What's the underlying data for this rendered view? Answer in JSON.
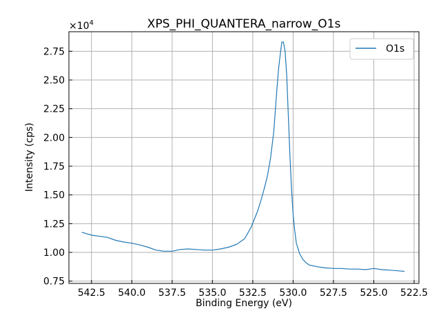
{
  "chart_data": {
    "type": "line",
    "title": "XPS_PHI_QUANTERA_narrow_O1s",
    "xlabel": "Binding Energy (eV)",
    "ylabel": "Intensity (cps)",
    "y_scale_label": "×10",
    "y_scale_exponent": "4",
    "x_reversed": true,
    "xlim": [
      543.9,
      522.2
    ],
    "ylim": [
      7300,
      29200
    ],
    "grid": true,
    "legend_position": "upper-right",
    "x_ticks": [
      542.5,
      540.0,
      537.5,
      535.0,
      532.5,
      530.0,
      527.5,
      525.0,
      522.5
    ],
    "x_tick_labels": [
      "542.5",
      "540.0",
      "537.5",
      "535.0",
      "532.5",
      "530.0",
      "527.5",
      "525.0",
      "522.5"
    ],
    "y_ticks": [
      7500,
      10000,
      12500,
      15000,
      17500,
      20000,
      22500,
      25000,
      27500
    ],
    "y_tick_labels": [
      "0.75",
      "1.00",
      "1.25",
      "1.50",
      "1.75",
      "2.00",
      "2.25",
      "2.50",
      "2.75"
    ],
    "series": [
      {
        "name": "O1s",
        "color": "#1f77b4",
        "x": [
          543.1,
          542.5,
          542.0,
          541.5,
          541.0,
          540.5,
          540.0,
          539.5,
          539.0,
          538.5,
          538.0,
          537.5,
          537.0,
          536.5,
          536.0,
          535.5,
          535.0,
          534.5,
          534.0,
          533.5,
          533.0,
          532.6,
          532.2,
          532.0,
          531.8,
          531.6,
          531.4,
          531.2,
          531.0,
          530.9,
          530.8,
          530.7,
          530.6,
          530.5,
          530.4,
          530.3,
          530.2,
          530.1,
          530.0,
          529.9,
          529.8,
          529.6,
          529.4,
          529.2,
          529.0,
          528.5,
          528.0,
          527.5,
          527.0,
          526.5,
          526.0,
          525.5,
          525.0,
          524.5,
          524.0,
          523.5,
          523.1
        ],
        "y": [
          11750,
          11500,
          11400,
          11300,
          11050,
          10900,
          10800,
          10650,
          10450,
          10200,
          10100,
          10100,
          10250,
          10300,
          10250,
          10200,
          10200,
          10300,
          10450,
          10700,
          11200,
          12200,
          13600,
          14500,
          15500,
          16600,
          18200,
          20500,
          24300,
          26000,
          27200,
          28300,
          28300,
          27500,
          25500,
          22000,
          18500,
          15500,
          13300,
          11900,
          10800,
          9900,
          9400,
          9100,
          8900,
          8750,
          8650,
          8600,
          8600,
          8550,
          8550,
          8500,
          8600,
          8500,
          8450,
          8400,
          8350
        ]
      }
    ]
  }
}
